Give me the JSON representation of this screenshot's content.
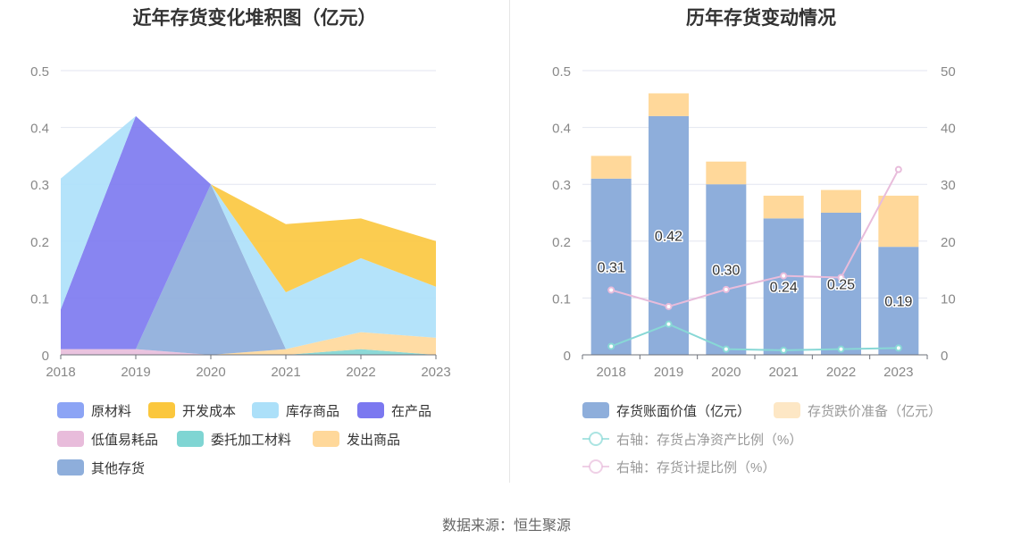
{
  "source": "数据来源：恒生聚源",
  "colors": {
    "raw_materials": "#8ca4f5",
    "dev_cost": "#fbc73d",
    "inventory_goods": "#ace0f9",
    "wip": "#7b78f0",
    "low_value": "#e8bcdb",
    "outsourced": "#7fd5d3",
    "shipped": "#ffd89a",
    "other": "#8eaedb",
    "book_value": "#8eaedb",
    "impairment": "#ffd89a",
    "impairment_legend": "#fde7c5",
    "ratio_net_assets": "#88d8d6",
    "ratio_provision": "#e8bcdb"
  },
  "chart_data": [
    {
      "type": "area",
      "title": "近年存货变化堆积图（亿元）",
      "x": [
        "2018",
        "2019",
        "2020",
        "2021",
        "2022",
        "2023"
      ],
      "ylim": [
        0,
        0.5
      ],
      "yticks": [
        "0",
        "0.1",
        "0.2",
        "0.3",
        "0.4",
        "0.5"
      ],
      "legend_position": "bottom",
      "series": [
        {
          "name": "原材料",
          "color_key": "raw_materials",
          "values": [
            0,
            0,
            0,
            0,
            0,
            0
          ]
        },
        {
          "name": "开发成本",
          "color_key": "dev_cost",
          "values": [
            0,
            0,
            0,
            0.12,
            0.07,
            0.08
          ]
        },
        {
          "name": "库存商品",
          "color_key": "inventory_goods",
          "values": [
            0.23,
            0,
            0,
            0.1,
            0.13,
            0.09
          ]
        },
        {
          "name": "在产品",
          "color_key": "wip",
          "values": [
            0.07,
            0.41,
            0,
            0,
            0,
            0
          ]
        },
        {
          "name": "低值易耗品",
          "color_key": "low_value",
          "values": [
            0.01,
            0.01,
            0,
            0,
            0,
            0
          ]
        },
        {
          "name": "委托加工材料",
          "color_key": "outsourced",
          "values": [
            0,
            0,
            0,
            0,
            0.01,
            0
          ]
        },
        {
          "name": "发出商品",
          "color_key": "shipped",
          "values": [
            0,
            0,
            0,
            0.01,
            0.03,
            0.03
          ]
        },
        {
          "name": "其他存货",
          "color_key": "other",
          "values": [
            0,
            0,
            0.3,
            0,
            0,
            0
          ]
        }
      ]
    },
    {
      "type": "bar",
      "title": "历年存货变动情况",
      "categories": [
        "2018",
        "2019",
        "2020",
        "2021",
        "2022",
        "2023"
      ],
      "ylim": [
        0,
        0.5
      ],
      "yticks": [
        "0",
        "0.1",
        "0.2",
        "0.3",
        "0.4",
        "0.5"
      ],
      "y2lim": [
        0,
        50
      ],
      "y2ticks": [
        "0",
        "10",
        "20",
        "30",
        "40",
        "50"
      ],
      "legend_position": "bottom",
      "stacked_bars": [
        {
          "name": "存货账面价值（亿元）",
          "color_key": "book_value",
          "legend_color_key": "book_value",
          "values": [
            0.31,
            0.42,
            0.3,
            0.24,
            0.25,
            0.19
          ],
          "labels": [
            "0.31",
            "0.42",
            "0.30",
            "0.24",
            "0.25",
            "0.19"
          ]
        },
        {
          "name": "存货跌价准备（亿元）",
          "color_key": "impairment",
          "legend_color_key": "impairment_legend",
          "values": [
            0.04,
            0.04,
            0.04,
            0.04,
            0.04,
            0.09
          ]
        }
      ],
      "lines": [
        {
          "name": "右轴：存货占净资产比例（%）",
          "color_key": "ratio_net_assets",
          "axis": "right",
          "values": [
            1.5,
            5.4,
            1.0,
            0.8,
            1.0,
            1.2
          ]
        },
        {
          "name": "右轴：存货计提比例（%）",
          "color_key": "ratio_provision",
          "axis": "right",
          "values": [
            11.4,
            8.5,
            11.5,
            13.9,
            13.6,
            32.6
          ]
        }
      ]
    }
  ]
}
